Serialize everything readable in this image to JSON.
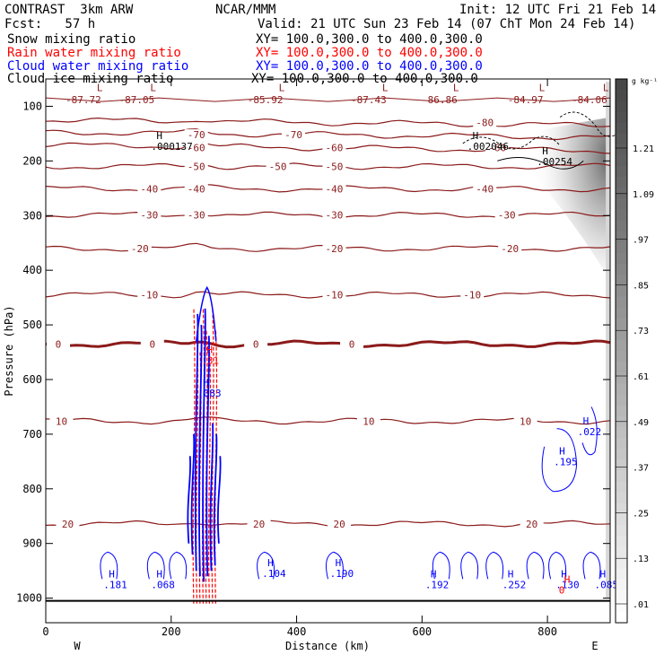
{
  "header": {
    "left1": "CONTRAST  3km ARW",
    "center1": "NCAR/MMM",
    "right1": "Init: 12 UTC Fri 21 Feb 14",
    "left2": "Fcst:   57 h",
    "right2": "Valid: 21 UTC Sun 23 Feb 14 (07 ChT Mon 24 Feb 14)",
    "fields": [
      {
        "name": "Snow mixing ratio",
        "xy": "XY= 100.0,300.0 to 400.0,300.0",
        "color": "#000000"
      },
      {
        "name": "Rain water mixing ratio",
        "xy": "XY= 100.0,300.0 to 400.0,300.0",
        "color": "#ff0000"
      },
      {
        "name": "Cloud water mixing ratio",
        "xy": "XY= 100.0,300.0 to 400.0,300.0",
        "color": "#0000ff"
      },
      {
        "name": "Cloud ice mixing ratio",
        "xy": "XY= 100.0,300.0 to 400.0,300.0",
        "color": "#000000"
      }
    ]
  },
  "chart_data": {
    "type": "contour-cross-section",
    "xlabel": "Distance (km)",
    "ylabel": "Pressure (hPa)",
    "xlim": [
      0,
      900
    ],
    "ylim": [
      1045,
      50
    ],
    "x_ticks": [
      0,
      200,
      400,
      600,
      800
    ],
    "y_ticks": [
      100,
      200,
      300,
      400,
      500,
      600,
      700,
      800,
      900,
      1000
    ],
    "x_end_labels": {
      "left": "W",
      "right": "E"
    },
    "colorbar": {
      "unit": "g kg⁻¹",
      "labels": [
        "1.21",
        "1.09",
        ".97",
        ".85",
        ".73",
        ".61",
        ".49",
        ".37",
        ".25",
        ".13",
        ".01"
      ]
    },
    "temperature_contours": [
      {
        "level": -80,
        "pressure": 130,
        "label": "-80",
        "label_x": 700
      },
      {
        "level": -70,
        "pressure": 152,
        "label": "-70",
        "label_x": [
          240,
          395
        ]
      },
      {
        "level": -60,
        "pressure": 176,
        "label": "-60",
        "label_x": [
          240,
          460,
          720
        ]
      },
      {
        "level": -50,
        "pressure": 210,
        "label": "-50",
        "label_x": [
          240,
          370,
          460
        ]
      },
      {
        "level": -40,
        "pressure": 251,
        "label": "-40",
        "label_x": [
          165,
          240,
          460,
          700
        ]
      },
      {
        "level": -30,
        "pressure": 299,
        "label": "-30",
        "label_x": [
          165,
          240,
          460,
          735
        ]
      },
      {
        "level": -20,
        "pressure": 360,
        "label": "-20",
        "label_x": [
          150,
          460,
          740
        ]
      },
      {
        "level": -10,
        "pressure": 445,
        "label": "-10",
        "label_x": [
          165,
          460,
          680
        ]
      },
      {
        "level": 0,
        "pressure": 535,
        "label": "0",
        "label_x": [
          20,
          170,
          335,
          488
        ]
      },
      {
        "level": 10,
        "pressure": 676,
        "label": "10",
        "label_x": [
          25,
          515,
          765
        ]
      },
      {
        "level": 20,
        "pressure": 864,
        "label": "20",
        "label_x": [
          35,
          340,
          468,
          775
        ]
      }
    ],
    "minimum_temperatures": [
      {
        "x": 60,
        "value": "-87.72"
      },
      {
        "x": 145,
        "value": "-87.05"
      },
      {
        "x": 350,
        "value": "-85.92"
      },
      {
        "x": 515,
        "value": "-87.43"
      },
      {
        "x": 628,
        "value": "-86.86"
      },
      {
        "x": 765,
        "value": "-84.97"
      },
      {
        "x": 867,
        "value": "-84.06"
      }
    ],
    "maxima_labels": [
      {
        "x": 168,
        "p": 178,
        "value": ".000137",
        "color": "#000000"
      },
      {
        "x": 672,
        "p": 178,
        "value": ".002046",
        "color": "#000000"
      },
      {
        "x": 783,
        "p": 206,
        "value": ".00254",
        "color": "#000000"
      },
      {
        "x": 248,
        "p": 570,
        "value": ".31",
        "color": "#ff0000"
      },
      {
        "x": 242,
        "p": 630,
        "value": ".083",
        "color": "#0000ff"
      },
      {
        "x": 810,
        "p": 755,
        "value": ".195",
        "color": "#0000ff"
      },
      {
        "x": 848,
        "p": 700,
        "value": ".022",
        "color": "#0000ff"
      },
      {
        "x": 92,
        "p": 980,
        "value": ".181",
        "color": "#0000ff"
      },
      {
        "x": 168,
        "p": 980,
        "value": ".068",
        "color": "#0000ff"
      },
      {
        "x": 345,
        "p": 960,
        "value": ".104",
        "color": "#0000ff"
      },
      {
        "x": 453,
        "p": 960,
        "value": ".190",
        "color": "#0000ff"
      },
      {
        "x": 605,
        "p": 980,
        "value": ".192",
        "color": "#0000ff"
      },
      {
        "x": 728,
        "p": 980,
        "value": ".252",
        "color": "#0000ff"
      },
      {
        "x": 813,
        "p": 980,
        "value": ".130",
        "color": "#0000ff"
      },
      {
        "x": 875,
        "p": 980,
        "value": ".085",
        "color": "#0000ff"
      },
      {
        "x": 818,
        "p": 990,
        "value": "0",
        "color": "#ff0000"
      }
    ]
  }
}
